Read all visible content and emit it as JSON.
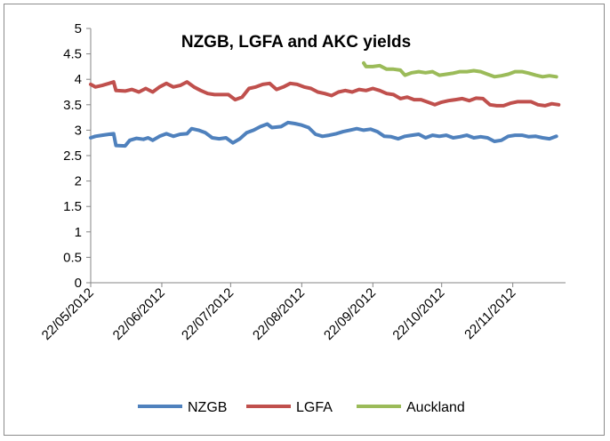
{
  "chart_data": {
    "type": "line",
    "title": "NZGB, LGFA and AKC yields",
    "xlabel": "",
    "ylabel": "",
    "ylim": [
      0,
      5
    ],
    "y_ticks": [
      "0",
      "0.5",
      "1",
      "1.5",
      "2",
      "2.5",
      "3",
      "3.5",
      "4",
      "4.5",
      "5"
    ],
    "x_tick_labels": [
      "22/05/2012",
      "22/06/2012",
      "22/07/2012",
      "22/08/2012",
      "22/09/2012",
      "22/10/2012",
      "22/11/2012"
    ],
    "x_ticks": [
      "2012-05-22",
      "2012-06-22",
      "2012-07-22",
      "2012-08-22",
      "2012-09-22",
      "2012-10-22",
      "2012-11-22"
    ],
    "xlim": [
      "2012-05-22",
      "2012-12-15"
    ],
    "grid": false,
    "legend_position": "bottom",
    "series": [
      {
        "name": "NZGB",
        "color": "#4f81bd",
        "points": [
          [
            "2012-05-22",
            2.85
          ],
          [
            "2012-05-24",
            2.88
          ],
          [
            "2012-05-27",
            2.9
          ],
          [
            "2012-05-30",
            2.92
          ],
          [
            "2012-06-01",
            2.93
          ],
          [
            "2012-06-02",
            2.7
          ],
          [
            "2012-06-06",
            2.69
          ],
          [
            "2012-06-08",
            2.8
          ],
          [
            "2012-06-11",
            2.84
          ],
          [
            "2012-06-14",
            2.82
          ],
          [
            "2012-06-16",
            2.85
          ],
          [
            "2012-06-18",
            2.8
          ],
          [
            "2012-06-21",
            2.88
          ],
          [
            "2012-06-24",
            2.93
          ],
          [
            "2012-06-27",
            2.88
          ],
          [
            "2012-06-30",
            2.92
          ],
          [
            "2012-07-03",
            2.93
          ],
          [
            "2012-07-05",
            3.03
          ],
          [
            "2012-07-08",
            3.0
          ],
          [
            "2012-07-11",
            2.95
          ],
          [
            "2012-07-14",
            2.85
          ],
          [
            "2012-07-17",
            2.83
          ],
          [
            "2012-07-20",
            2.85
          ],
          [
            "2012-07-23",
            2.75
          ],
          [
            "2012-07-26",
            2.83
          ],
          [
            "2012-07-29",
            2.95
          ],
          [
            "2012-08-01",
            3.0
          ],
          [
            "2012-08-04",
            3.07
          ],
          [
            "2012-08-07",
            3.12
          ],
          [
            "2012-08-09",
            3.05
          ],
          [
            "2012-08-13",
            3.07
          ],
          [
            "2012-08-16",
            3.15
          ],
          [
            "2012-08-19",
            3.13
          ],
          [
            "2012-08-22",
            3.1
          ],
          [
            "2012-08-25",
            3.05
          ],
          [
            "2012-08-28",
            2.92
          ],
          [
            "2012-08-31",
            2.88
          ],
          [
            "2012-09-03",
            2.9
          ],
          [
            "2012-09-06",
            2.93
          ],
          [
            "2012-09-09",
            2.97
          ],
          [
            "2012-09-12",
            3.0
          ],
          [
            "2012-09-15",
            3.03
          ],
          [
            "2012-09-18",
            3.0
          ],
          [
            "2012-09-21",
            3.02
          ],
          [
            "2012-09-24",
            2.97
          ],
          [
            "2012-09-27",
            2.88
          ],
          [
            "2012-09-30",
            2.87
          ],
          [
            "2012-10-03",
            2.83
          ],
          [
            "2012-10-06",
            2.88
          ],
          [
            "2012-10-09",
            2.9
          ],
          [
            "2012-10-12",
            2.92
          ],
          [
            "2012-10-15",
            2.85
          ],
          [
            "2012-10-18",
            2.9
          ],
          [
            "2012-10-21",
            2.88
          ],
          [
            "2012-10-24",
            2.9
          ],
          [
            "2012-10-27",
            2.85
          ],
          [
            "2012-10-30",
            2.87
          ],
          [
            "2012-11-02",
            2.9
          ],
          [
            "2012-11-05",
            2.85
          ],
          [
            "2012-11-08",
            2.87
          ],
          [
            "2012-11-11",
            2.85
          ],
          [
            "2012-11-14",
            2.78
          ],
          [
            "2012-11-17",
            2.8
          ],
          [
            "2012-11-20",
            2.88
          ],
          [
            "2012-11-23",
            2.9
          ],
          [
            "2012-11-26",
            2.9
          ],
          [
            "2012-11-29",
            2.87
          ],
          [
            "2012-12-02",
            2.88
          ],
          [
            "2012-12-05",
            2.85
          ],
          [
            "2012-12-08",
            2.83
          ],
          [
            "2012-12-11",
            2.88
          ]
        ]
      },
      {
        "name": "LGFA",
        "color": "#c0504d",
        "points": [
          [
            "2012-05-22",
            3.9
          ],
          [
            "2012-05-24",
            3.85
          ],
          [
            "2012-05-27",
            3.88
          ],
          [
            "2012-05-30",
            3.92
          ],
          [
            "2012-06-01",
            3.95
          ],
          [
            "2012-06-02",
            3.78
          ],
          [
            "2012-06-06",
            3.77
          ],
          [
            "2012-06-09",
            3.8
          ],
          [
            "2012-06-12",
            3.75
          ],
          [
            "2012-06-15",
            3.82
          ],
          [
            "2012-06-18",
            3.75
          ],
          [
            "2012-06-21",
            3.85
          ],
          [
            "2012-06-24",
            3.92
          ],
          [
            "2012-06-27",
            3.85
          ],
          [
            "2012-06-30",
            3.88
          ],
          [
            "2012-07-03",
            3.95
          ],
          [
            "2012-07-06",
            3.85
          ],
          [
            "2012-07-09",
            3.78
          ],
          [
            "2012-07-12",
            3.72
          ],
          [
            "2012-07-15",
            3.7
          ],
          [
            "2012-07-18",
            3.7
          ],
          [
            "2012-07-21",
            3.7
          ],
          [
            "2012-07-24",
            3.6
          ],
          [
            "2012-07-27",
            3.65
          ],
          [
            "2012-07-30",
            3.82
          ],
          [
            "2012-08-02",
            3.85
          ],
          [
            "2012-08-05",
            3.9
          ],
          [
            "2012-08-08",
            3.92
          ],
          [
            "2012-08-11",
            3.8
          ],
          [
            "2012-08-14",
            3.85
          ],
          [
            "2012-08-17",
            3.92
          ],
          [
            "2012-08-20",
            3.9
          ],
          [
            "2012-08-23",
            3.85
          ],
          [
            "2012-08-26",
            3.82
          ],
          [
            "2012-08-29",
            3.75
          ],
          [
            "2012-09-01",
            3.72
          ],
          [
            "2012-09-04",
            3.68
          ],
          [
            "2012-09-07",
            3.75
          ],
          [
            "2012-09-10",
            3.78
          ],
          [
            "2012-09-13",
            3.75
          ],
          [
            "2012-09-16",
            3.8
          ],
          [
            "2012-09-19",
            3.78
          ],
          [
            "2012-09-22",
            3.82
          ],
          [
            "2012-09-25",
            3.78
          ],
          [
            "2012-09-28",
            3.72
          ],
          [
            "2012-10-01",
            3.7
          ],
          [
            "2012-10-04",
            3.62
          ],
          [
            "2012-10-07",
            3.65
          ],
          [
            "2012-10-10",
            3.6
          ],
          [
            "2012-10-13",
            3.6
          ],
          [
            "2012-10-16",
            3.55
          ],
          [
            "2012-10-19",
            3.5
          ],
          [
            "2012-10-22",
            3.55
          ],
          [
            "2012-10-25",
            3.58
          ],
          [
            "2012-10-28",
            3.6
          ],
          [
            "2012-10-31",
            3.62
          ],
          [
            "2012-11-03",
            3.58
          ],
          [
            "2012-11-06",
            3.63
          ],
          [
            "2012-11-09",
            3.62
          ],
          [
            "2012-11-12",
            3.5
          ],
          [
            "2012-11-15",
            3.48
          ],
          [
            "2012-11-18",
            3.48
          ],
          [
            "2012-11-21",
            3.53
          ],
          [
            "2012-11-24",
            3.56
          ],
          [
            "2012-11-27",
            3.56
          ],
          [
            "2012-11-30",
            3.56
          ],
          [
            "2012-12-03",
            3.5
          ],
          [
            "2012-12-06",
            3.48
          ],
          [
            "2012-12-09",
            3.52
          ],
          [
            "2012-12-12",
            3.5
          ]
        ]
      },
      {
        "name": "Auckland",
        "color": "#9bbb59",
        "points": [
          [
            "2012-09-18",
            4.32
          ],
          [
            "2012-09-19",
            4.25
          ],
          [
            "2012-09-22",
            4.25
          ],
          [
            "2012-09-25",
            4.27
          ],
          [
            "2012-09-28",
            4.2
          ],
          [
            "2012-10-01",
            4.2
          ],
          [
            "2012-10-04",
            4.18
          ],
          [
            "2012-10-06",
            4.08
          ],
          [
            "2012-10-09",
            4.13
          ],
          [
            "2012-10-12",
            4.15
          ],
          [
            "2012-10-15",
            4.13
          ],
          [
            "2012-10-18",
            4.15
          ],
          [
            "2012-10-21",
            4.08
          ],
          [
            "2012-10-24",
            4.1
          ],
          [
            "2012-10-27",
            4.12
          ],
          [
            "2012-10-30",
            4.15
          ],
          [
            "2012-11-02",
            4.15
          ],
          [
            "2012-11-05",
            4.17
          ],
          [
            "2012-11-08",
            4.15
          ],
          [
            "2012-11-11",
            4.1
          ],
          [
            "2012-11-14",
            4.05
          ],
          [
            "2012-11-17",
            4.07
          ],
          [
            "2012-11-20",
            4.1
          ],
          [
            "2012-11-23",
            4.15
          ],
          [
            "2012-11-26",
            4.15
          ],
          [
            "2012-11-29",
            4.12
          ],
          [
            "2012-12-02",
            4.08
          ],
          [
            "2012-12-05",
            4.05
          ],
          [
            "2012-12-08",
            4.07
          ],
          [
            "2012-12-11",
            4.05
          ]
        ]
      }
    ]
  }
}
